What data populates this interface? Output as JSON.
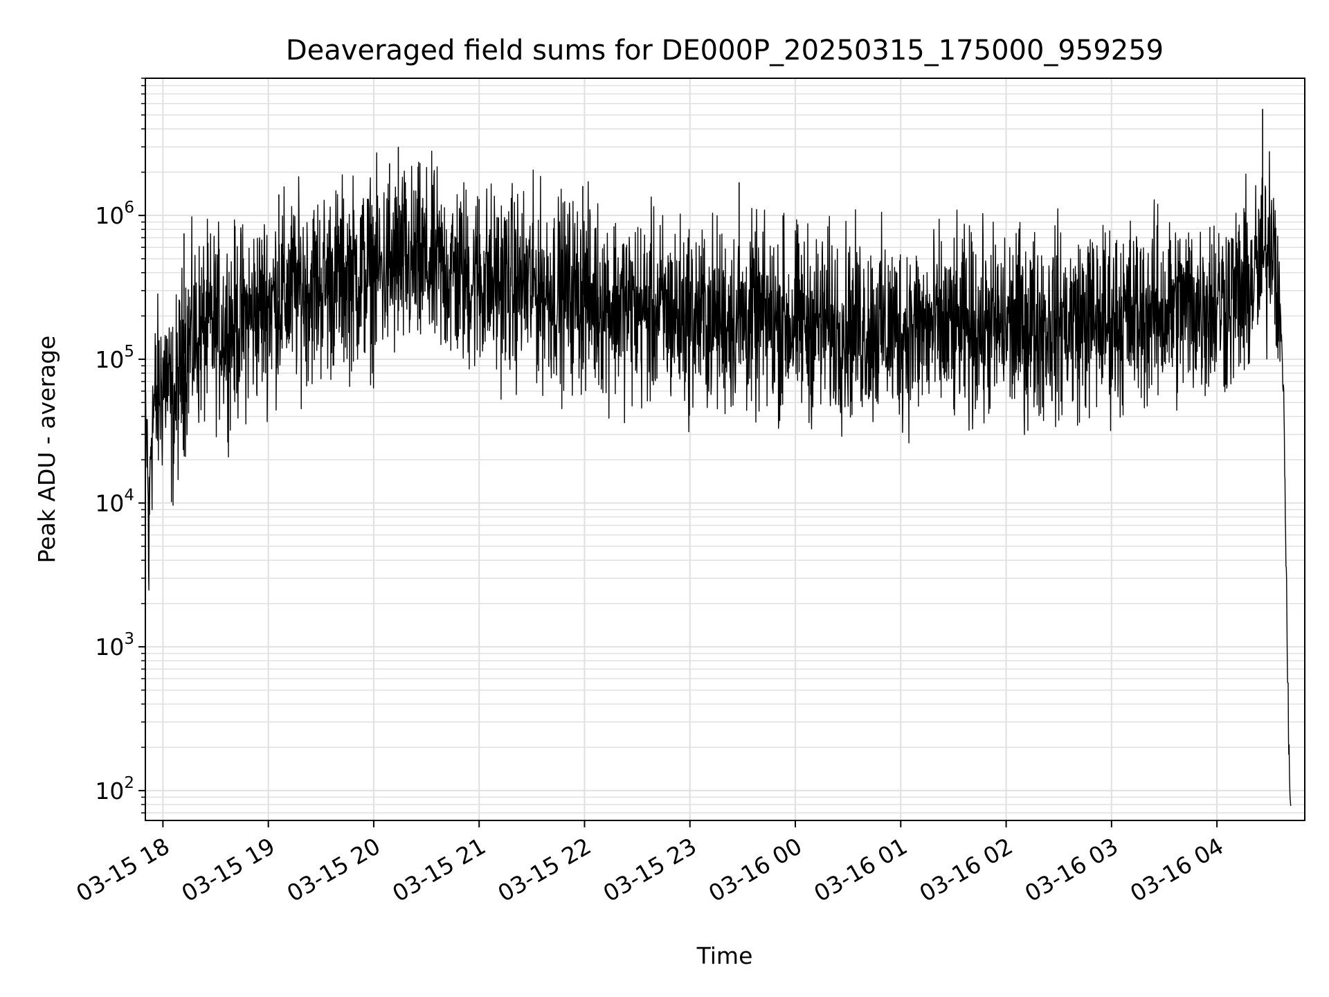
{
  "chart_data": {
    "type": "line",
    "title": "Deaveraged field sums for DE000P_20250315_175000_959259",
    "xlabel": "Time",
    "ylabel": "Peak ADU - average",
    "y_scale": "log",
    "ylim": [
      62,
      9000000
    ],
    "xlim": [
      "03-15 17:50",
      "03-16 04:50"
    ],
    "grid": "major and minor",
    "line_color": "#000000",
    "grid_color": "#e0e0e0",
    "x_ticks": [
      {
        "t": "03-15 18:00",
        "label": "03-15 18"
      },
      {
        "t": "03-15 19:00",
        "label": "03-15 19"
      },
      {
        "t": "03-15 20:00",
        "label": "03-15 20"
      },
      {
        "t": "03-15 21:00",
        "label": "03-15 21"
      },
      {
        "t": "03-15 22:00",
        "label": "03-15 22"
      },
      {
        "t": "03-15 23:00",
        "label": "03-15 23"
      },
      {
        "t": "03-16 00:00",
        "label": "03-16 00"
      },
      {
        "t": "03-16 01:00",
        "label": "03-16 01"
      },
      {
        "t": "03-16 02:00",
        "label": "03-16 02"
      },
      {
        "t": "03-16 03:00",
        "label": "03-16 03"
      },
      {
        "t": "03-16 04:00",
        "label": "03-16 04"
      }
    ],
    "y_ticks": [
      {
        "value": 100,
        "base": "10",
        "exp": "2"
      },
      {
        "value": 1000,
        "base": "10",
        "exp": "3"
      },
      {
        "value": 10000,
        "base": "10",
        "exp": "4"
      },
      {
        "value": 100000,
        "base": "10",
        "exp": "5"
      },
      {
        "value": 1000000,
        "base": "10",
        "exp": "6"
      }
    ],
    "series": [
      {
        "points": [
          [
            "03-15 17:50",
            15000
          ],
          [
            "03-15 17:51",
            28000
          ],
          [
            "03-15 17:52",
            3800
          ],
          [
            "03-15 17:53",
            30000
          ],
          [
            "03-15 17:55",
            45000
          ],
          [
            "03-15 17:58",
            60000
          ],
          [
            "03-15 18:02",
            80000
          ],
          [
            "03-15 18:05",
            40000
          ],
          [
            "03-15 18:08",
            60000
          ],
          [
            "03-15 18:12",
            110000
          ],
          [
            "03-15 18:15",
            130000
          ],
          [
            "03-15 18:20",
            150000
          ],
          [
            "03-15 18:30",
            170000
          ],
          [
            "03-15 18:40",
            170000
          ],
          [
            "03-15 18:50",
            200000
          ],
          [
            "03-15 19:00",
            250000
          ],
          [
            "03-15 19:15",
            300000
          ],
          [
            "03-15 19:30",
            330000
          ],
          [
            "03-15 19:45",
            380000
          ],
          [
            "03-15 20:00",
            400000
          ],
          [
            "03-15 20:15",
            450000
          ],
          [
            "03-15 20:30",
            450000
          ],
          [
            "03-15 20:45",
            400000
          ],
          [
            "03-15 21:00",
            350000
          ],
          [
            "03-15 21:30",
            320000
          ],
          [
            "03-15 22:00",
            280000
          ],
          [
            "03-15 22:30",
            220000
          ],
          [
            "03-15 23:00",
            200000
          ],
          [
            "03-15 23:30",
            190000
          ],
          [
            "03-16 00:00",
            180000
          ],
          [
            "03-16 00:30",
            170000
          ],
          [
            "03-16 01:00",
            160000
          ],
          [
            "03-16 01:30",
            160000
          ],
          [
            "03-16 02:00",
            170000
          ],
          [
            "03-16 02:30",
            180000
          ],
          [
            "03-16 03:00",
            190000
          ],
          [
            "03-16 03:30",
            220000
          ],
          [
            "03-16 04:00",
            250000
          ],
          [
            "03-16 04:15",
            280000
          ],
          [
            "03-16 04:28",
            500000
          ],
          [
            "03-16 04:31",
            900000
          ],
          [
            "03-16 04:34",
            500000
          ],
          [
            "03-16 04:36",
            200000
          ],
          [
            "03-16 04:38",
            60000
          ],
          [
            "03-16 04:39",
            8000
          ],
          [
            "03-16 04:40",
            1000
          ],
          [
            "03-16 04:41",
            180
          ],
          [
            "03-16 04:42",
            70
          ]
        ],
        "spikes": [
          [
            "03-15 18:12",
            750000
          ],
          [
            "03-15 19:06",
            1400000
          ],
          [
            "03-15 20:09",
            2300000
          ],
          [
            "03-15 20:14",
            3000000
          ],
          [
            "03-15 20:18",
            1700000
          ],
          [
            "03-15 21:00",
            1300000
          ],
          [
            "03-15 21:59",
            1600000
          ],
          [
            "03-15 23:28",
            1700000
          ],
          [
            "03-15 23:53",
            1000000
          ],
          [
            "03-16 04:26",
            5500000
          ]
        ]
      }
    ]
  }
}
